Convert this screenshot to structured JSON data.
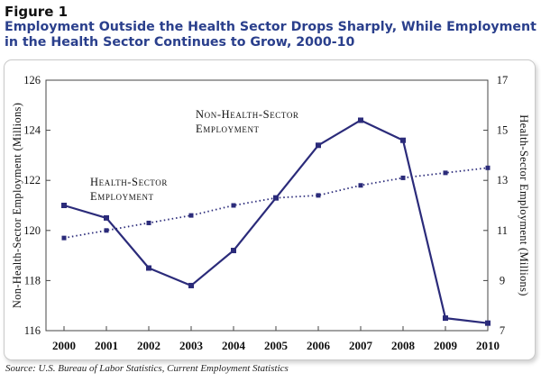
{
  "figure": {
    "label": "Figure 1",
    "title": "Employment Outside the Health Sector Drops Sharply, While Employment in the Health Sector Continues to Grow, 2000-10",
    "source": "Source: U.S. Bureau of Labor Statistics, Current Employment Statistics"
  },
  "chart_data": {
    "type": "line",
    "x": [
      "2000",
      "2001",
      "2002",
      "2003",
      "2004",
      "2005",
      "2006",
      "2007",
      "2008",
      "2009",
      "2010"
    ],
    "series": [
      {
        "name": "Non-Health-Sector Employment",
        "axis": "left",
        "style": "solid",
        "values": [
          121.0,
          120.5,
          118.5,
          117.8,
          119.2,
          121.3,
          123.4,
          124.4,
          123.6,
          116.5,
          116.3
        ]
      },
      {
        "name": "Health-Sector Employment",
        "axis": "right",
        "style": "dotted",
        "values": [
          10.7,
          11.0,
          11.3,
          11.6,
          12.0,
          12.3,
          12.4,
          12.8,
          13.1,
          13.3,
          13.5
        ]
      }
    ],
    "annotations": [
      {
        "series": 0,
        "lines": [
          "Non-Health-Sector",
          "Employment"
        ]
      },
      {
        "series": 1,
        "lines": [
          "Health-Sector",
          "Employment"
        ]
      }
    ],
    "left_axis": {
      "label": "Non-Health-Sector Employment (Millions)",
      "range": [
        116,
        126
      ],
      "ticks": [
        116,
        118,
        120,
        122,
        124,
        126
      ]
    },
    "right_axis": {
      "label": "Health-Sector Employment (Millions)",
      "range": [
        7,
        17
      ],
      "ticks": [
        7,
        9,
        11,
        13,
        15,
        17
      ]
    },
    "line_color": "#2b2b7a",
    "grid": false,
    "legend": "none"
  }
}
